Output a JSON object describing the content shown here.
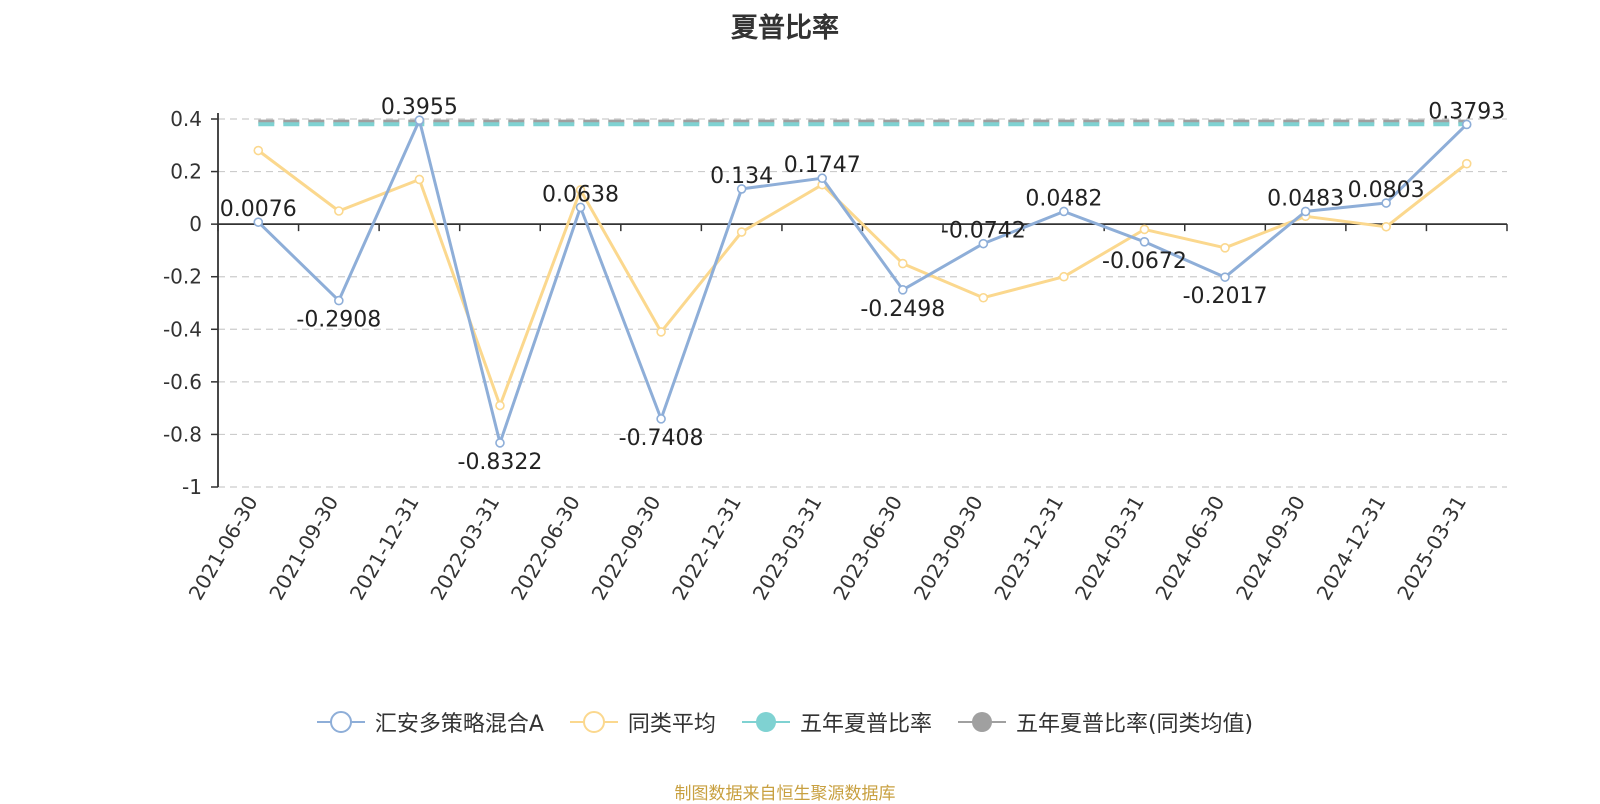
{
  "chart_data": {
    "type": "line",
    "title": "夏普比率",
    "categories": [
      "2021-06-30",
      "2021-09-30",
      "2021-12-31",
      "2022-03-31",
      "2022-06-30",
      "2022-09-30",
      "2022-12-31",
      "2023-03-31",
      "2023-06-30",
      "2023-09-30",
      "2023-12-31",
      "2024-03-31",
      "2024-06-30",
      "2024-09-30",
      "2024-12-31",
      "2025-03-31"
    ],
    "ylim": [
      -1,
      0.4
    ],
    "yticks": [
      "0.4",
      "0.2",
      "0",
      "-0.2",
      "-0.4",
      "-0.6",
      "-0.8",
      "-1"
    ],
    "grid": true,
    "legend_position": "bottom",
    "series": [
      {
        "name": "汇安多策略混合A",
        "color": "#8eaed8",
        "marker": "hollow-circle",
        "values": [
          0.0076,
          -0.2908,
          0.3955,
          -0.8322,
          0.0638,
          -0.7408,
          0.134,
          0.1747,
          -0.2498,
          -0.0742,
          0.0482,
          -0.0672,
          -0.2017,
          0.0483,
          0.0803,
          0.3793
        ],
        "labels": [
          "0.0076",
          "-0.2908",
          "0.3955",
          "-0.8322",
          "0.0638",
          "-0.7408",
          "0.134",
          "0.1747",
          "-0.2498",
          "-0.0742",
          "0.0482",
          "-0.0672",
          "-0.2017",
          "0.0483",
          "0.0803",
          "0.3793"
        ]
      },
      {
        "name": "同类平均",
        "color": "#fbd88e",
        "marker": "hollow-circle",
        "values": [
          0.28,
          0.05,
          0.17,
          -0.69,
          0.13,
          -0.41,
          -0.03,
          0.15,
          -0.15,
          -0.28,
          -0.2,
          -0.02,
          -0.09,
          0.03,
          -0.01,
          0.23
        ]
      },
      {
        "name": "五年夏普比率",
        "color": "#7fd2d2",
        "marker": "filled-circle",
        "dashed": true,
        "values": [
          0.38,
          0.38,
          0.38,
          0.38,
          0.38,
          0.38,
          0.38,
          0.38,
          0.38,
          0.38,
          0.38,
          0.38,
          0.38,
          0.38,
          0.38,
          0.38
        ]
      },
      {
        "name": "五年夏普比率(同类均值)",
        "color": "#a0a0a0",
        "marker": "filled-circle",
        "dashed": true,
        "values": [
          0.39,
          0.39,
          0.39,
          0.39,
          0.39,
          0.39,
          0.39,
          0.39,
          0.39,
          0.39,
          0.39,
          0.39,
          0.39,
          0.39,
          0.39,
          0.39
        ]
      }
    ]
  },
  "source": "制图数据来自恒生聚源数据库"
}
